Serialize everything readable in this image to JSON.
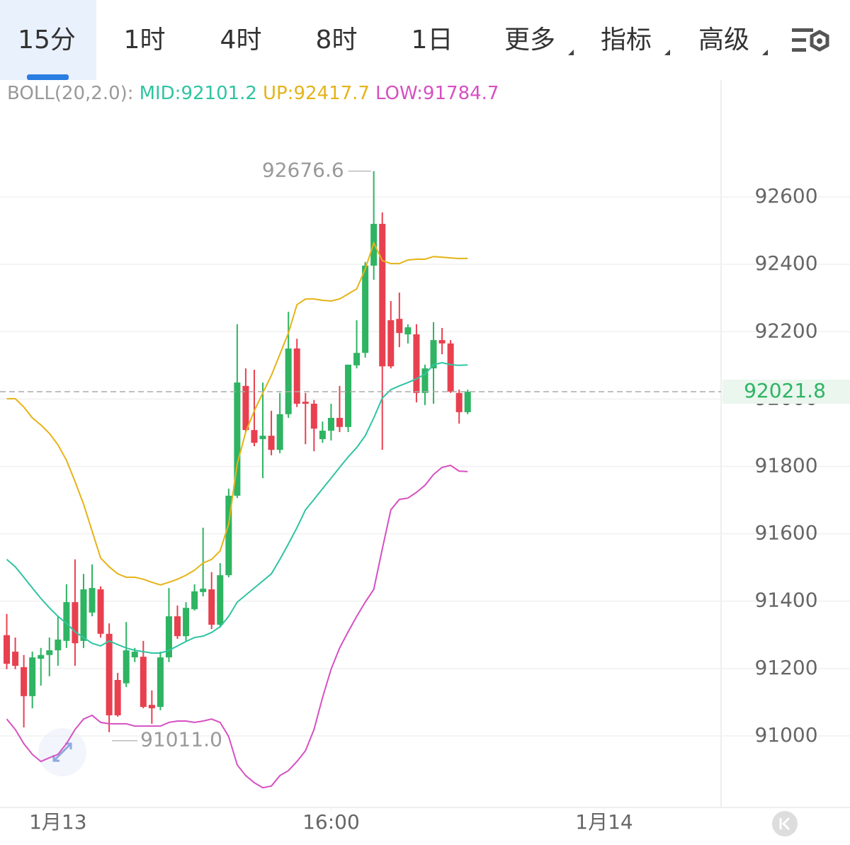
{
  "chart_data": {
    "type": "candlestick",
    "tabs": [
      "15分",
      "1时",
      "4时",
      "8时",
      "1日",
      "更多",
      "指标",
      "高级"
    ],
    "indicator": "BOLL(20,2.0):",
    "up_color": "#2eb462",
    "down_color": "#e8404f",
    "open": [
      91299,
      91250,
      91204,
      91118,
      91229,
      91240,
      91254,
      91282,
      91397,
      91282,
      91366,
      91435,
      91303,
      91166,
      91156,
      91233,
      91235,
      91092,
      91086,
      91233,
      91355,
      91296,
      91376,
      91427,
      91435,
      91330,
      91477,
      91713,
      92039,
      91908,
      91881,
      91891,
      91849,
      91955,
      92150,
      91992,
      91986,
      91881,
      91906,
      91944,
      91917,
      92100,
      92137,
      92396,
      92520,
      92234,
      92238,
      92192,
      92192,
      92018,
      92091,
      92175,
      92165,
      92018,
      91961
    ],
    "high": [
      91362,
      91292,
      91240,
      91250,
      91261,
      91292,
      91355,
      91450,
      91524,
      91481,
      91509,
      91444,
      91334,
      91187,
      91338,
      91261,
      91282,
      91135,
      91250,
      91439,
      91387,
      91397,
      91450,
      91618,
      91486,
      91513,
      91734,
      92222,
      92091,
      92087,
      92049,
      91965,
      92018,
      92259,
      92179,
      92018,
      91997,
      91933,
      91986,
      92039,
      92102,
      92234,
      92407,
      92676.6,
      92554,
      92291,
      92316,
      92222,
      92222,
      92102,
      92228,
      92211,
      92175,
      92028,
      92028
    ],
    "low": [
      91198,
      91198,
      91025,
      91082,
      91149,
      91177,
      91208,
      91261,
      91208,
      91261,
      91355,
      91292,
      91011,
      91057,
      91145,
      91219,
      91082,
      91036,
      91076,
      91219,
      91288,
      91282,
      91372,
      91414,
      91317,
      91322,
      91471,
      91706,
      91902,
      91860,
      91765,
      91833,
      91839,
      91944,
      91976,
      91866,
      91845,
      91870,
      91877,
      91902,
      91902,
      92091,
      92123,
      92354,
      91849,
      92091,
      92154,
      92165,
      91990,
      91982,
      91986,
      92133,
      92018,
      91927,
      91955
    ],
    "close": [
      91214,
      91208,
      91118,
      91233,
      91240,
      91254,
      91286,
      91397,
      91275,
      91435,
      91439,
      91303,
      91061,
      91061,
      91254,
      91250,
      91086,
      91082,
      91233,
      91355,
      91296,
      91380,
      91429,
      91437,
      91330,
      91477,
      91713,
      92049,
      91908,
      91870,
      91891,
      91849,
      91955,
      92150,
      91986,
      91986,
      91912,
      91906,
      91944,
      91917,
      92102,
      92137,
      92396,
      92520,
      92097,
      92097,
      92196,
      92213,
      92018,
      92091,
      92175,
      92165,
      92022,
      91961,
      92021.8
    ],
    "series": [
      {
        "name": "MID",
        "legend_label": "MID:92101.2",
        "color": "#2fc4a2",
        "values": [
          91524,
          91502,
          91471,
          91439,
          91408,
          91380,
          91355,
          91334,
          91309,
          91292,
          91275,
          91267,
          91282,
          91271,
          91261,
          91254,
          91250,
          91246,
          91246,
          91254,
          91267,
          91280,
          91292,
          91296,
          91307,
          91324,
          91355,
          91397,
          91418,
          91439,
          91460,
          91481,
          91524,
          91570,
          91618,
          91671,
          91702,
          91734,
          91765,
          91797,
          91828,
          91856,
          91891,
          91944,
          92003,
          92028,
          92039,
          92049,
          92060,
          92074,
          92102,
          92108,
          92102,
          92100,
          92101.2
        ]
      },
      {
        "name": "UP",
        "legend_label": "UP:92417.7",
        "color": "#e6b317",
        "values": [
          92001,
          92001,
          91976,
          91944,
          91923,
          91898,
          91864,
          91818,
          91755,
          91688,
          91608,
          91528,
          91502,
          91481,
          91471,
          91471,
          91465,
          91456,
          91448,
          91456,
          91465,
          91477,
          91492,
          91513,
          91524,
          91549,
          91629,
          91807,
          91902,
          91965,
          92018,
          92070,
          92133,
          92196,
          92280,
          92297,
          92297,
          92293,
          92291,
          92297,
          92312,
          92327,
          92386,
          92463,
          92411,
          92402,
          92402,
          92413,
          92415,
          92415,
          92423,
          92421,
          92419,
          92417,
          92417.7
        ]
      },
      {
        "name": "LOW",
        "legend_label": "LOW:91784.7",
        "color": "#d650c2",
        "values": [
          91050,
          91019,
          90977,
          90945,
          90924,
          90935,
          90945,
          90977,
          91019,
          91050,
          91061,
          91040,
          91036,
          91036,
          91036,
          91029,
          91029,
          91029,
          91029,
          91040,
          91044,
          91044,
          91040,
          91044,
          91050,
          91040,
          90998,
          90914,
          90882,
          90861,
          90846,
          90851,
          90882,
          90897,
          90924,
          90956,
          91019,
          91114,
          91198,
          91261,
          91309,
          91355,
          91397,
          91435,
          91555,
          91671,
          91702,
          91706,
          91723,
          91744,
          91776,
          91797,
          91803,
          91786,
          91784.7
        ]
      }
    ],
    "high_label": "92676.6",
    "low_label": "91011.0",
    "last_price_label": "92021.8",
    "ylim": [
      90787.5,
      92947
    ],
    "yticks": [
      91000,
      91200,
      91400,
      91600,
      91800,
      92000,
      92200,
      92400,
      92600
    ],
    "xlim": [
      -0.79,
      83.69
    ],
    "xticks": [
      {
        "value": 6,
        "label": "1月13"
      },
      {
        "value": 38,
        "label": "16:00"
      },
      {
        "value": 70,
        "label": "1月14"
      }
    ],
    "grid": true
  }
}
